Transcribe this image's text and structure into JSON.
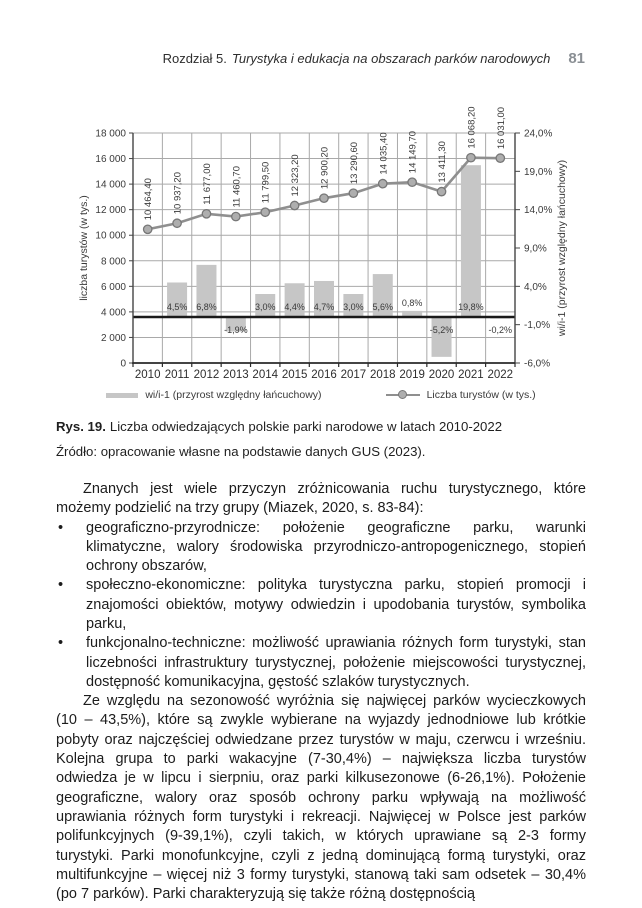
{
  "header": {
    "chapter": "Rozdział 5.",
    "title": "Turystyka i edukacja na obszarach parków narodowych",
    "page_number": "81"
  },
  "figure": {
    "caption_label": "Rys. 19.",
    "caption_text": "Liczba odwiedzających polskie parki narodowe w latach 2010-2022",
    "source": "Źródło: opracowanie własne na podstawie danych GUS (2023)."
  },
  "chart_data": {
    "type": "combo-bar-line",
    "categories": [
      "2010",
      "2011",
      "2012",
      "2013",
      "2014",
      "2015",
      "2016",
      "2017",
      "2018",
      "2019",
      "2020",
      "2021",
      "2022"
    ],
    "series": [
      {
        "name": "wi/i-1 (przyrost względny łańcuchowy)",
        "type": "bar",
        "axis": "right",
        "values": [
          null,
          4.5,
          6.8,
          -1.9,
          3.0,
          4.4,
          4.7,
          3.0,
          5.6,
          0.8,
          -5.2,
          19.8,
          -0.2
        ],
        "labels": [
          "",
          "4,5%",
          "6,8%",
          "-1,9%",
          "3,0%",
          "4,4%",
          "4,7%",
          "3,0%",
          "5,6%",
          "0,8%",
          "-5,2%",
          "19,8%",
          "-0,2%"
        ]
      },
      {
        "name": "Liczba turystów (w tys.)",
        "type": "line",
        "axis": "left",
        "values": [
          10464.4,
          10937.2,
          11677.0,
          11460.7,
          11799.5,
          12323.2,
          12900.2,
          13290.6,
          14035.4,
          14149.7,
          13411.3,
          16068.2,
          16031.0
        ],
        "labels": [
          "10 464,40",
          "10 937,20",
          "11 677,00",
          "11 460,70",
          "11 799,50",
          "12 323,20",
          "12 900,20",
          "13 290,60",
          "14 035,40",
          "14 149,70",
          "13 411,30",
          "16 068,20",
          "16 031,00"
        ]
      }
    ],
    "left_axis": {
      "label": "liczba turystów (w tys.)",
      "min": 0,
      "max": 18000,
      "step": 2000,
      "ticks": [
        "0",
        "2 000",
        "4 000",
        "6 000",
        "8 000",
        "10 000",
        "12 000",
        "14 000",
        "16 000",
        "18 000"
      ]
    },
    "right_axis": {
      "label": "wi/i-1 (przyrost względny łańcuchowy)",
      "min": -6,
      "max": 24,
      "step": 5,
      "ticks": [
        "-6,0%",
        "-1,0%",
        "4,0%",
        "9,0%",
        "14,0%",
        "19,0%",
        "24,0%"
      ]
    },
    "grid": true,
    "legend_position": "bottom",
    "colors": {
      "bar": "#c6c6c6",
      "line": "#8f8f8f",
      "marker_fill": "#aeaeae",
      "marker_stroke": "#777777",
      "grid": "#a9a9a9",
      "axis": "#454545",
      "zero_line": "#1a1a1a",
      "text": "#3a3a3a"
    }
  },
  "body": {
    "bullet_char": "•",
    "paragraph1": "Znanych jest wiele przyczyn zróżnicowania ruchu turystycznego, które możemy podzielić na trzy grupy (Miazek, 2020, s. 83-84):",
    "bullets": [
      "geograficzno-przyrodnicze: położenie geograficzne parku, warunki klimatyczne, walory środowiska przyrodniczo-antropogenicznego, stopień ochrony obszarów,",
      "społeczno-ekonomiczne: polityka turystyczna parku, stopień promocji i znajomości obiektów, motywy odwiedzin i upodobania turystów, symbolika parku,",
      "funkcjonalno-techniczne: możliwość uprawiania różnych form turystyki, stan liczebności infrastruktury turystycznej, położenie miejscowości turystycznej, dostępność komunikacyjna, gęstość szlaków turystycznych."
    ],
    "paragraph2": "Ze względu na sezonowość wyróżnia się najwięcej parków wycieczkowych (10 – 43,5%), które są zwykle wybierane na wyjazdy jednodniowe lub krótkie pobyty oraz najczęściej odwiedzane przez turystów w maju, czerwcu i wrześniu. Kolejna grupa to parki wakacyjne (7-30,4%) – największa liczba turystów odwiedza je w lipcu i sierpniu, oraz parki kilkusezonowe (6-26,1%). Położenie geograficzne, walory oraz sposób ochrony parku wpływają na możliwość uprawiania różnych form turystyki i rekreacji. Najwięcej w Polsce jest parków polifunkcyjnych (9-39,1%), czyli takich, w których uprawiane są 2-3 formy turystyki. Parki monofunkcyjne, czyli z jedną dominującą formą turystyki, oraz multifunkcyjne – więcej niż 3 formy turystyki, stanową taki sam odsetek – 30,4% (po 7 parków). Parki charakteryzują się także różną dostępnością"
  }
}
